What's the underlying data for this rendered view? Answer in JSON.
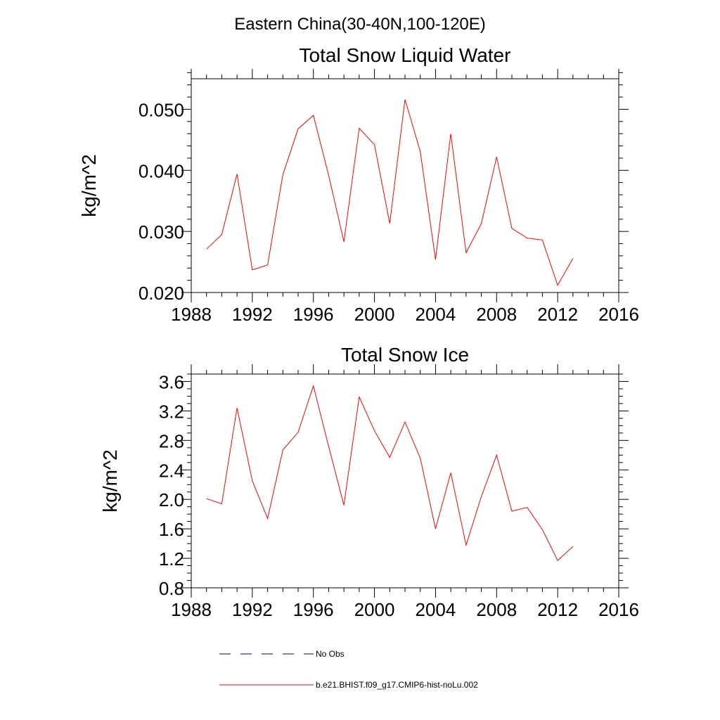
{
  "figure": {
    "suptitle": "Eastern China(30-40N,100-120E)",
    "line_color": "#ff0000",
    "obs_color": "#000080"
  },
  "legend": {
    "items": [
      {
        "label": "No Obs",
        "style": "dashed",
        "color": "#000080"
      },
      {
        "label": "b.e21.BHIST.f09_g17.CMIP6-hist-noLu.002",
        "style": "solid",
        "color": "#ff0000"
      }
    ]
  },
  "chart_data": [
    {
      "type": "line",
      "title": "Total Snow Liquid Water",
      "xlabel": "",
      "ylabel": "kg/m^2",
      "xlim": [
        1988,
        2016
      ],
      "ylim": [
        0.02,
        0.055
      ],
      "xticks": [
        1988,
        1992,
        1996,
        2000,
        2004,
        2008,
        2012,
        2016
      ],
      "xtick_labels": [
        "1988",
        "1992",
        "1996",
        "2000",
        "2004",
        "2008",
        "2012",
        "2016"
      ],
      "yticks": [
        0.02,
        0.03,
        0.04,
        0.05
      ],
      "ytick_labels": [
        "0.020",
        "0.030",
        "0.040",
        "0.050"
      ],
      "y_minor_step": 0.002,
      "grid": false,
      "x": [
        1989,
        1990,
        1991,
        1992,
        1993,
        1994,
        1995,
        1996,
        1997,
        1998,
        1999,
        2000,
        2001,
        2002,
        2003,
        2004,
        2005,
        2006,
        2007,
        2008,
        2009,
        2010,
        2011,
        2012,
        2013
      ],
      "series": [
        {
          "name": "b.e21.BHIST.f09_g17.CMIP6-hist-noLu.002",
          "values": [
            0.0271,
            0.0295,
            0.0394,
            0.0237,
            0.0245,
            0.0393,
            0.0468,
            0.049,
            0.0392,
            0.0283,
            0.0469,
            0.0442,
            0.0313,
            0.0516,
            0.0431,
            0.0254,
            0.046,
            0.0265,
            0.0313,
            0.0422,
            0.0305,
            0.0289,
            0.0286,
            0.0212,
            0.0256
          ]
        }
      ]
    },
    {
      "type": "line",
      "title": "Total Snow Ice",
      "xlabel": "",
      "ylabel": "kg/m^2",
      "xlim": [
        1988,
        2016
      ],
      "ylim": [
        0.8,
        3.7
      ],
      "xticks": [
        1988,
        1992,
        1996,
        2000,
        2004,
        2008,
        2012,
        2016
      ],
      "xtick_labels": [
        "1988",
        "1992",
        "1996",
        "2000",
        "2004",
        "2008",
        "2012",
        "2016"
      ],
      "yticks": [
        0.8,
        1.2,
        1.6,
        2.0,
        2.4,
        2.8,
        3.2,
        3.6
      ],
      "ytick_labels": [
        "0.8",
        "1.2",
        "1.6",
        "2.0",
        "2.4",
        "2.8",
        "3.2",
        "3.6"
      ],
      "y_minor_step": 0.1,
      "grid": false,
      "x": [
        1989,
        1990,
        1991,
        1992,
        1993,
        1994,
        1995,
        1996,
        1997,
        1998,
        1999,
        2000,
        2001,
        2002,
        2003,
        2004,
        2005,
        2006,
        2007,
        2008,
        2009,
        2010,
        2011,
        2012,
        2013
      ],
      "series": [
        {
          "name": "b.e21.BHIST.f09_g17.CMIP6-hist-noLu.002",
          "values": [
            2.01,
            1.94,
            3.24,
            2.25,
            1.74,
            2.67,
            2.91,
            3.54,
            2.72,
            1.92,
            3.39,
            2.93,
            2.57,
            3.05,
            2.56,
            1.6,
            2.36,
            1.38,
            2.04,
            2.6,
            1.84,
            1.89,
            1.59,
            1.17,
            1.36
          ]
        }
      ]
    }
  ]
}
